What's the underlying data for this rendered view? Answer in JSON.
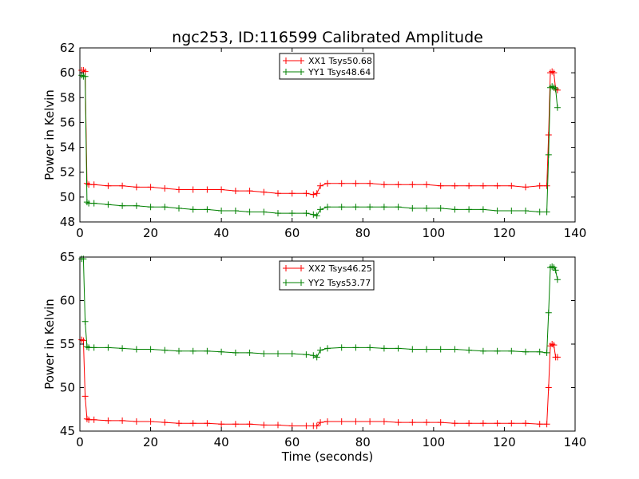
{
  "chart_data": [
    {
      "type": "line",
      "title": "ngc253, ID:116599 Calibrated Amplitude",
      "xlabel": "",
      "ylabel": "Power in Kelvin",
      "xlim": [
        0,
        140
      ],
      "ylim": [
        48,
        62
      ],
      "xticks": [
        "0",
        "20",
        "40",
        "60",
        "80",
        "100",
        "120",
        "140"
      ],
      "yticks": [
        "48",
        "50",
        "52",
        "54",
        "56",
        "58",
        "60",
        "62"
      ],
      "legend_position": "top-center",
      "marker": "+",
      "x": [
        0.5,
        1.0,
        1.5,
        2.0,
        2.5,
        4,
        8,
        12,
        16,
        20,
        24,
        28,
        32,
        36,
        40,
        44,
        48,
        52,
        56,
        60,
        64,
        66,
        67,
        68,
        70,
        74,
        78,
        82,
        86,
        90,
        94,
        98,
        102,
        106,
        110,
        114,
        118,
        122,
        126,
        130,
        132,
        132.5,
        133,
        133.5,
        134,
        134.5,
        135
      ],
      "series": [
        {
          "name": "XX1 Tsys50.68",
          "color": "#ff0000",
          "values": [
            60.2,
            60.2,
            60.1,
            51.1,
            51.0,
            51.0,
            50.9,
            50.9,
            50.8,
            50.8,
            50.7,
            50.6,
            50.6,
            50.6,
            50.6,
            50.5,
            50.5,
            50.4,
            50.3,
            50.3,
            50.3,
            50.2,
            50.3,
            50.9,
            51.1,
            51.1,
            51.1,
            51.1,
            51.0,
            51.0,
            51.0,
            51.0,
            50.9,
            50.9,
            50.9,
            50.9,
            50.9,
            50.9,
            50.8,
            50.9,
            50.9,
            55.0,
            60.0,
            60.1,
            60.0,
            58.7,
            58.6
          ]
        },
        {
          "name": "YY1 Tsys48.64",
          "color": "#008000",
          "values": [
            59.8,
            59.7,
            59.7,
            49.6,
            49.5,
            49.5,
            49.4,
            49.3,
            49.3,
            49.2,
            49.2,
            49.1,
            49.0,
            49.0,
            48.9,
            48.9,
            48.8,
            48.8,
            48.7,
            48.7,
            48.7,
            48.6,
            48.5,
            49.0,
            49.2,
            49.2,
            49.2,
            49.2,
            49.2,
            49.2,
            49.1,
            49.1,
            49.1,
            49.0,
            49.0,
            49.0,
            48.9,
            48.9,
            48.9,
            48.8,
            48.8,
            53.4,
            58.8,
            58.9,
            58.8,
            58.7,
            57.2
          ]
        }
      ]
    },
    {
      "type": "line",
      "title": "",
      "xlabel": "Time (seconds)",
      "ylabel": "Power in Kelvin",
      "xlim": [
        0,
        140
      ],
      "ylim": [
        45,
        65
      ],
      "xticks": [
        "0",
        "20",
        "40",
        "60",
        "80",
        "100",
        "120",
        "140"
      ],
      "yticks": [
        "45",
        "50",
        "55",
        "60",
        "65"
      ],
      "legend_position": "top-center",
      "marker": "+",
      "x": [
        0.5,
        1.0,
        1.5,
        2.0,
        2.5,
        4,
        8,
        12,
        16,
        20,
        24,
        28,
        32,
        36,
        40,
        44,
        48,
        52,
        56,
        60,
        64,
        66,
        67,
        68,
        70,
        74,
        78,
        82,
        86,
        90,
        94,
        98,
        102,
        106,
        110,
        114,
        118,
        122,
        126,
        130,
        132,
        132.5,
        133,
        133.5,
        134,
        134.5,
        135
      ],
      "series": [
        {
          "name": "XX2 Tsys46.25",
          "color": "#ff0000",
          "values": [
            55.5,
            55.4,
            49.0,
            46.4,
            46.3,
            46.3,
            46.2,
            46.2,
            46.1,
            46.1,
            46.0,
            45.9,
            45.9,
            45.9,
            45.8,
            45.8,
            45.8,
            45.7,
            45.7,
            45.6,
            45.6,
            45.6,
            45.6,
            46.0,
            46.1,
            46.1,
            46.1,
            46.1,
            46.1,
            46.0,
            46.0,
            46.0,
            46.0,
            45.9,
            45.9,
            45.9,
            45.9,
            45.9,
            45.9,
            45.8,
            45.8,
            50.0,
            54.8,
            55.0,
            54.9,
            53.5,
            53.5
          ]
        },
        {
          "name": "YY2 Tsys53.77",
          "color": "#008000",
          "values": [
            64.8,
            64.8,
            57.6,
            54.7,
            54.6,
            54.6,
            54.6,
            54.5,
            54.4,
            54.4,
            54.3,
            54.2,
            54.2,
            54.2,
            54.1,
            54.0,
            54.0,
            53.9,
            53.9,
            53.9,
            53.8,
            53.7,
            53.5,
            54.3,
            54.5,
            54.6,
            54.6,
            54.6,
            54.5,
            54.5,
            54.4,
            54.4,
            54.4,
            54.4,
            54.3,
            54.2,
            54.2,
            54.2,
            54.1,
            54.1,
            54.0,
            58.6,
            63.8,
            63.9,
            63.8,
            63.5,
            62.4
          ]
        }
      ]
    }
  ]
}
